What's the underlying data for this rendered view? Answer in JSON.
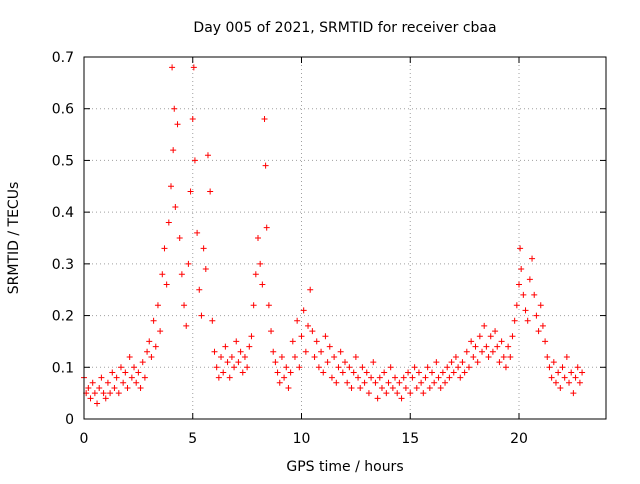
{
  "chart_data": {
    "type": "scatter",
    "title": "Day 005 of 2021, SRMTID for receiver cbaa",
    "xlabel": "GPS time / hours",
    "ylabel": "SRMTID / TECUs",
    "xlim": [
      0,
      24
    ],
    "ylim": [
      0,
      0.7
    ],
    "xticks": [
      "0",
      "5",
      "10",
      "15",
      "20"
    ],
    "yticks": [
      "0",
      "0.1",
      "0.2",
      "0.3",
      "0.4",
      "0.5",
      "0.6",
      "0.7"
    ],
    "grid": true,
    "marker": "+",
    "color": "#ff0000",
    "series": [
      {
        "name": "SRMTID",
        "points": [
          [
            0.0,
            0.08
          ],
          [
            0.1,
            0.05
          ],
          [
            0.2,
            0.06
          ],
          [
            0.3,
            0.04
          ],
          [
            0.4,
            0.07
          ],
          [
            0.5,
            0.05
          ],
          [
            0.6,
            0.03
          ],
          [
            0.7,
            0.06
          ],
          [
            0.8,
            0.08
          ],
          [
            0.9,
            0.05
          ],
          [
            1.0,
            0.04
          ],
          [
            1.1,
            0.07
          ],
          [
            1.2,
            0.05
          ],
          [
            1.3,
            0.09
          ],
          [
            1.4,
            0.06
          ],
          [
            1.5,
            0.08
          ],
          [
            1.6,
            0.05
          ],
          [
            1.7,
            0.1
          ],
          [
            1.8,
            0.07
          ],
          [
            1.9,
            0.09
          ],
          [
            2.0,
            0.06
          ],
          [
            2.1,
            0.12
          ],
          [
            2.2,
            0.08
          ],
          [
            2.3,
            0.1
          ],
          [
            2.4,
            0.07
          ],
          [
            2.5,
            0.09
          ],
          [
            2.6,
            0.06
          ],
          [
            2.7,
            0.11
          ],
          [
            2.8,
            0.08
          ],
          [
            2.9,
            0.13
          ],
          [
            3.0,
            0.15
          ],
          [
            3.1,
            0.12
          ],
          [
            3.2,
            0.19
          ],
          [
            3.3,
            0.14
          ],
          [
            3.4,
            0.22
          ],
          [
            3.5,
            0.17
          ],
          [
            3.6,
            0.28
          ],
          [
            3.7,
            0.33
          ],
          [
            3.8,
            0.26
          ],
          [
            3.9,
            0.38
          ],
          [
            4.0,
            0.45
          ],
          [
            4.05,
            0.68
          ],
          [
            4.1,
            0.52
          ],
          [
            4.15,
            0.6
          ],
          [
            4.2,
            0.41
          ],
          [
            4.3,
            0.57
          ],
          [
            4.4,
            0.35
          ],
          [
            4.5,
            0.28
          ],
          [
            4.6,
            0.22
          ],
          [
            4.7,
            0.18
          ],
          [
            4.8,
            0.3
          ],
          [
            4.9,
            0.44
          ],
          [
            5.0,
            0.58
          ],
          [
            5.05,
            0.68
          ],
          [
            5.1,
            0.5
          ],
          [
            5.2,
            0.36
          ],
          [
            5.3,
            0.25
          ],
          [
            5.4,
            0.2
          ],
          [
            5.5,
            0.33
          ],
          [
            5.6,
            0.29
          ],
          [
            5.7,
            0.51
          ],
          [
            5.8,
            0.44
          ],
          [
            5.9,
            0.19
          ],
          [
            6.0,
            0.13
          ],
          [
            6.1,
            0.1
          ],
          [
            6.2,
            0.08
          ],
          [
            6.3,
            0.12
          ],
          [
            6.4,
            0.09
          ],
          [
            6.5,
            0.14
          ],
          [
            6.6,
            0.11
          ],
          [
            6.7,
            0.08
          ],
          [
            6.8,
            0.12
          ],
          [
            6.9,
            0.1
          ],
          [
            7.0,
            0.15
          ],
          [
            7.1,
            0.11
          ],
          [
            7.2,
            0.13
          ],
          [
            7.3,
            0.09
          ],
          [
            7.4,
            0.12
          ],
          [
            7.5,
            0.1
          ],
          [
            7.6,
            0.14
          ],
          [
            7.7,
            0.16
          ],
          [
            7.8,
            0.22
          ],
          [
            7.9,
            0.28
          ],
          [
            8.0,
            0.35
          ],
          [
            8.1,
            0.3
          ],
          [
            8.2,
            0.26
          ],
          [
            8.3,
            0.58
          ],
          [
            8.35,
            0.49
          ],
          [
            8.4,
            0.37
          ],
          [
            8.5,
            0.22
          ],
          [
            8.6,
            0.17
          ],
          [
            8.7,
            0.13
          ],
          [
            8.8,
            0.11
          ],
          [
            8.9,
            0.09
          ],
          [
            9.0,
            0.07
          ],
          [
            9.1,
            0.12
          ],
          [
            9.2,
            0.08
          ],
          [
            9.3,
            0.1
          ],
          [
            9.4,
            0.06
          ],
          [
            9.5,
            0.09
          ],
          [
            9.6,
            0.15
          ],
          [
            9.7,
            0.12
          ],
          [
            9.8,
            0.19
          ],
          [
            9.9,
            0.1
          ],
          [
            10.0,
            0.16
          ],
          [
            10.1,
            0.21
          ],
          [
            10.2,
            0.13
          ],
          [
            10.3,
            0.18
          ],
          [
            10.4,
            0.25
          ],
          [
            10.5,
            0.17
          ],
          [
            10.6,
            0.12
          ],
          [
            10.7,
            0.15
          ],
          [
            10.8,
            0.1
          ],
          [
            10.9,
            0.13
          ],
          [
            11.0,
            0.09
          ],
          [
            11.1,
            0.16
          ],
          [
            11.2,
            0.11
          ],
          [
            11.3,
            0.14
          ],
          [
            11.4,
            0.08
          ],
          [
            11.5,
            0.12
          ],
          [
            11.6,
            0.07
          ],
          [
            11.7,
            0.1
          ],
          [
            11.8,
            0.13
          ],
          [
            11.9,
            0.09
          ],
          [
            12.0,
            0.11
          ],
          [
            12.1,
            0.07
          ],
          [
            12.2,
            0.1
          ],
          [
            12.3,
            0.06
          ],
          [
            12.4,
            0.09
          ],
          [
            12.5,
            0.12
          ],
          [
            12.6,
            0.08
          ],
          [
            12.7,
            0.06
          ],
          [
            12.8,
            0.1
          ],
          [
            12.9,
            0.07
          ],
          [
            13.0,
            0.09
          ],
          [
            13.1,
            0.05
          ],
          [
            13.2,
            0.08
          ],
          [
            13.3,
            0.11
          ],
          [
            13.4,
            0.07
          ],
          [
            13.5,
            0.04
          ],
          [
            13.6,
            0.08
          ],
          [
            13.7,
            0.06
          ],
          [
            13.8,
            0.09
          ],
          [
            13.9,
            0.05
          ],
          [
            14.0,
            0.07
          ],
          [
            14.1,
            0.1
          ],
          [
            14.2,
            0.06
          ],
          [
            14.3,
            0.08
          ],
          [
            14.4,
            0.05
          ],
          [
            14.5,
            0.07
          ],
          [
            14.6,
            0.04
          ],
          [
            14.7,
            0.08
          ],
          [
            14.8,
            0.06
          ],
          [
            14.9,
            0.09
          ],
          [
            15.0,
            0.05
          ],
          [
            15.1,
            0.08
          ],
          [
            15.2,
            0.1
          ],
          [
            15.3,
            0.06
          ],
          [
            15.4,
            0.09
          ],
          [
            15.5,
            0.07
          ],
          [
            15.6,
            0.05
          ],
          [
            15.7,
            0.08
          ],
          [
            15.8,
            0.1
          ],
          [
            15.9,
            0.06
          ],
          [
            16.0,
            0.09
          ],
          [
            16.1,
            0.07
          ],
          [
            16.2,
            0.11
          ],
          [
            16.3,
            0.08
          ],
          [
            16.4,
            0.06
          ],
          [
            16.5,
            0.09
          ],
          [
            16.6,
            0.07
          ],
          [
            16.7,
            0.1
          ],
          [
            16.8,
            0.08
          ],
          [
            16.9,
            0.11
          ],
          [
            17.0,
            0.09
          ],
          [
            17.1,
            0.12
          ],
          [
            17.2,
            0.1
          ],
          [
            17.3,
            0.08
          ],
          [
            17.4,
            0.11
          ],
          [
            17.5,
            0.09
          ],
          [
            17.6,
            0.13
          ],
          [
            17.7,
            0.1
          ],
          [
            17.8,
            0.15
          ],
          [
            17.9,
            0.12
          ],
          [
            18.0,
            0.14
          ],
          [
            18.1,
            0.11
          ],
          [
            18.2,
            0.16
          ],
          [
            18.3,
            0.13
          ],
          [
            18.4,
            0.18
          ],
          [
            18.5,
            0.14
          ],
          [
            18.6,
            0.12
          ],
          [
            18.7,
            0.16
          ],
          [
            18.8,
            0.13
          ],
          [
            18.9,
            0.17
          ],
          [
            19.0,
            0.14
          ],
          [
            19.1,
            0.11
          ],
          [
            19.2,
            0.15
          ],
          [
            19.3,
            0.12
          ],
          [
            19.4,
            0.1
          ],
          [
            19.5,
            0.14
          ],
          [
            19.6,
            0.12
          ],
          [
            19.7,
            0.16
          ],
          [
            19.8,
            0.19
          ],
          [
            19.9,
            0.22
          ],
          [
            20.0,
            0.26
          ],
          [
            20.05,
            0.33
          ],
          [
            20.1,
            0.29
          ],
          [
            20.2,
            0.24
          ],
          [
            20.3,
            0.21
          ],
          [
            20.4,
            0.19
          ],
          [
            20.5,
            0.27
          ],
          [
            20.6,
            0.31
          ],
          [
            20.7,
            0.24
          ],
          [
            20.8,
            0.2
          ],
          [
            20.9,
            0.17
          ],
          [
            21.0,
            0.22
          ],
          [
            21.1,
            0.18
          ],
          [
            21.2,
            0.15
          ],
          [
            21.3,
            0.12
          ],
          [
            21.4,
            0.1
          ],
          [
            21.5,
            0.08
          ],
          [
            21.6,
            0.11
          ],
          [
            21.7,
            0.07
          ],
          [
            21.8,
            0.09
          ],
          [
            21.9,
            0.06
          ],
          [
            22.0,
            0.1
          ],
          [
            22.1,
            0.08
          ],
          [
            22.2,
            0.12
          ],
          [
            22.3,
            0.07
          ],
          [
            22.4,
            0.09
          ],
          [
            22.5,
            0.05
          ],
          [
            22.6,
            0.08
          ],
          [
            22.7,
            0.1
          ],
          [
            22.8,
            0.07
          ],
          [
            22.9,
            0.09
          ]
        ]
      }
    ]
  }
}
